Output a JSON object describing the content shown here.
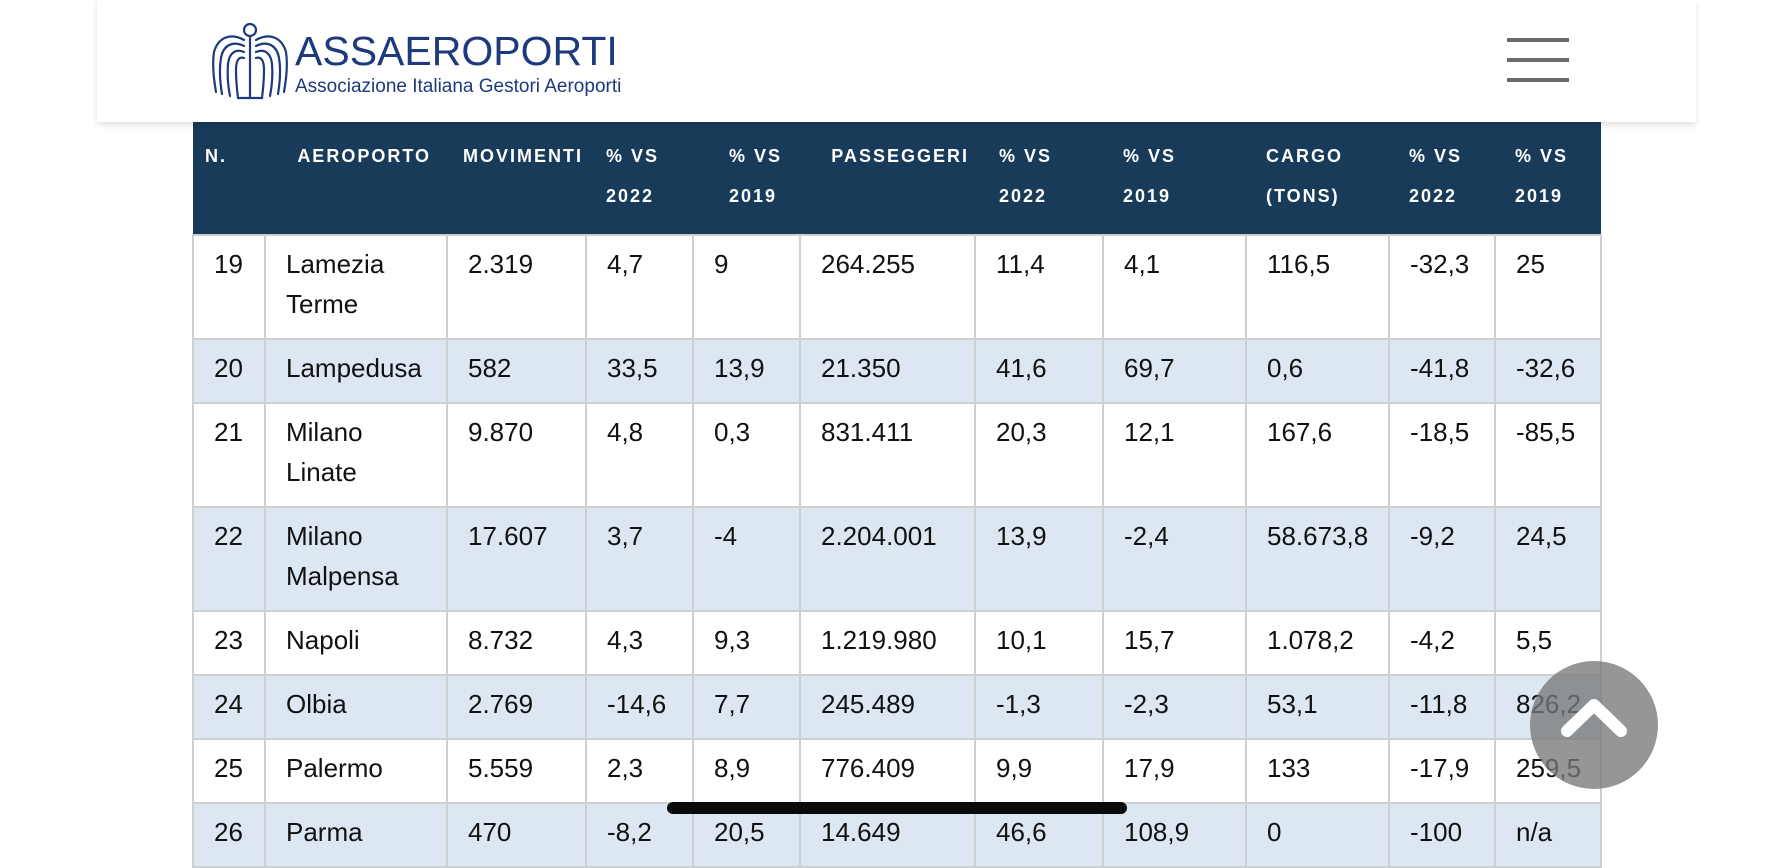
{
  "header": {
    "logo_name": "ASSAEROPORTI",
    "logo_tagline": "Associazione Italiana Gestori Aeroporti",
    "logo_icon": "eagle-icon",
    "menu_icon": "hamburger-menu-icon"
  },
  "table": {
    "columns": [
      [
        "N."
      ],
      [
        "AEROPORTO"
      ],
      [
        "MOVIMENTI"
      ],
      [
        "% VS",
        "2022"
      ],
      [
        "% VS",
        "2019"
      ],
      [
        "PASSEGGERI"
      ],
      [
        "% VS",
        "2022"
      ],
      [
        "% VS",
        "2019"
      ],
      [
        "CARGO",
        "(TONS)"
      ],
      [
        "% VS",
        "2022"
      ],
      [
        "% VS",
        "2019"
      ]
    ],
    "rows": [
      {
        "cells": [
          "19",
          "Lamezia\nTerme",
          "2.319",
          "4,7",
          "9",
          "264.255",
          "11,4",
          "4,1",
          "116,5",
          "-32,3",
          "25"
        ]
      },
      {
        "cells": [
          "20",
          "Lampedusa",
          "582",
          "33,5",
          "13,9",
          "21.350",
          "41,6",
          "69,7",
          "0,6",
          "-41,8",
          "-32,6"
        ]
      },
      {
        "cells": [
          "21",
          "Milano\nLinate",
          "9.870",
          "4,8",
          "0,3",
          "831.411",
          "20,3",
          "12,1",
          "167,6",
          "-18,5",
          "-85,5"
        ]
      },
      {
        "cells": [
          "22",
          "Milano\nMalpensa",
          "17.607",
          "3,7",
          "-4",
          "2.204.001",
          "13,9",
          "-2,4",
          "58.673,8",
          "-9,2",
          "24,5"
        ]
      },
      {
        "cells": [
          "23",
          "Napoli",
          "8.732",
          "4,3",
          "9,3",
          "1.219.980",
          "10,1",
          "15,7",
          "1.078,2",
          "-4,2",
          "5,5"
        ]
      },
      {
        "cells": [
          "24",
          "Olbia",
          "2.769",
          "-14,6",
          "7,7",
          "245.489",
          "-1,3",
          "-2,3",
          "53,1",
          "-11,8",
          "826,2"
        ]
      },
      {
        "cells": [
          "25",
          "Palermo",
          "5.559",
          "2,3",
          "8,9",
          "776.409",
          "9,9",
          "17,9",
          "133",
          "-17,9",
          "259,5"
        ]
      },
      {
        "cells": [
          "26",
          "Parma",
          "470",
          "-8,2",
          "20,5",
          "14.649",
          "46,6",
          "108,9",
          "0",
          "-100",
          "n/a"
        ]
      }
    ]
  },
  "scroll_top_icon": "chevron-up-icon",
  "colors": {
    "brand": "#1d3a7c",
    "table_header": "#173b58",
    "row_shade": "#dce7f1",
    "border": "#cfcfcf"
  }
}
